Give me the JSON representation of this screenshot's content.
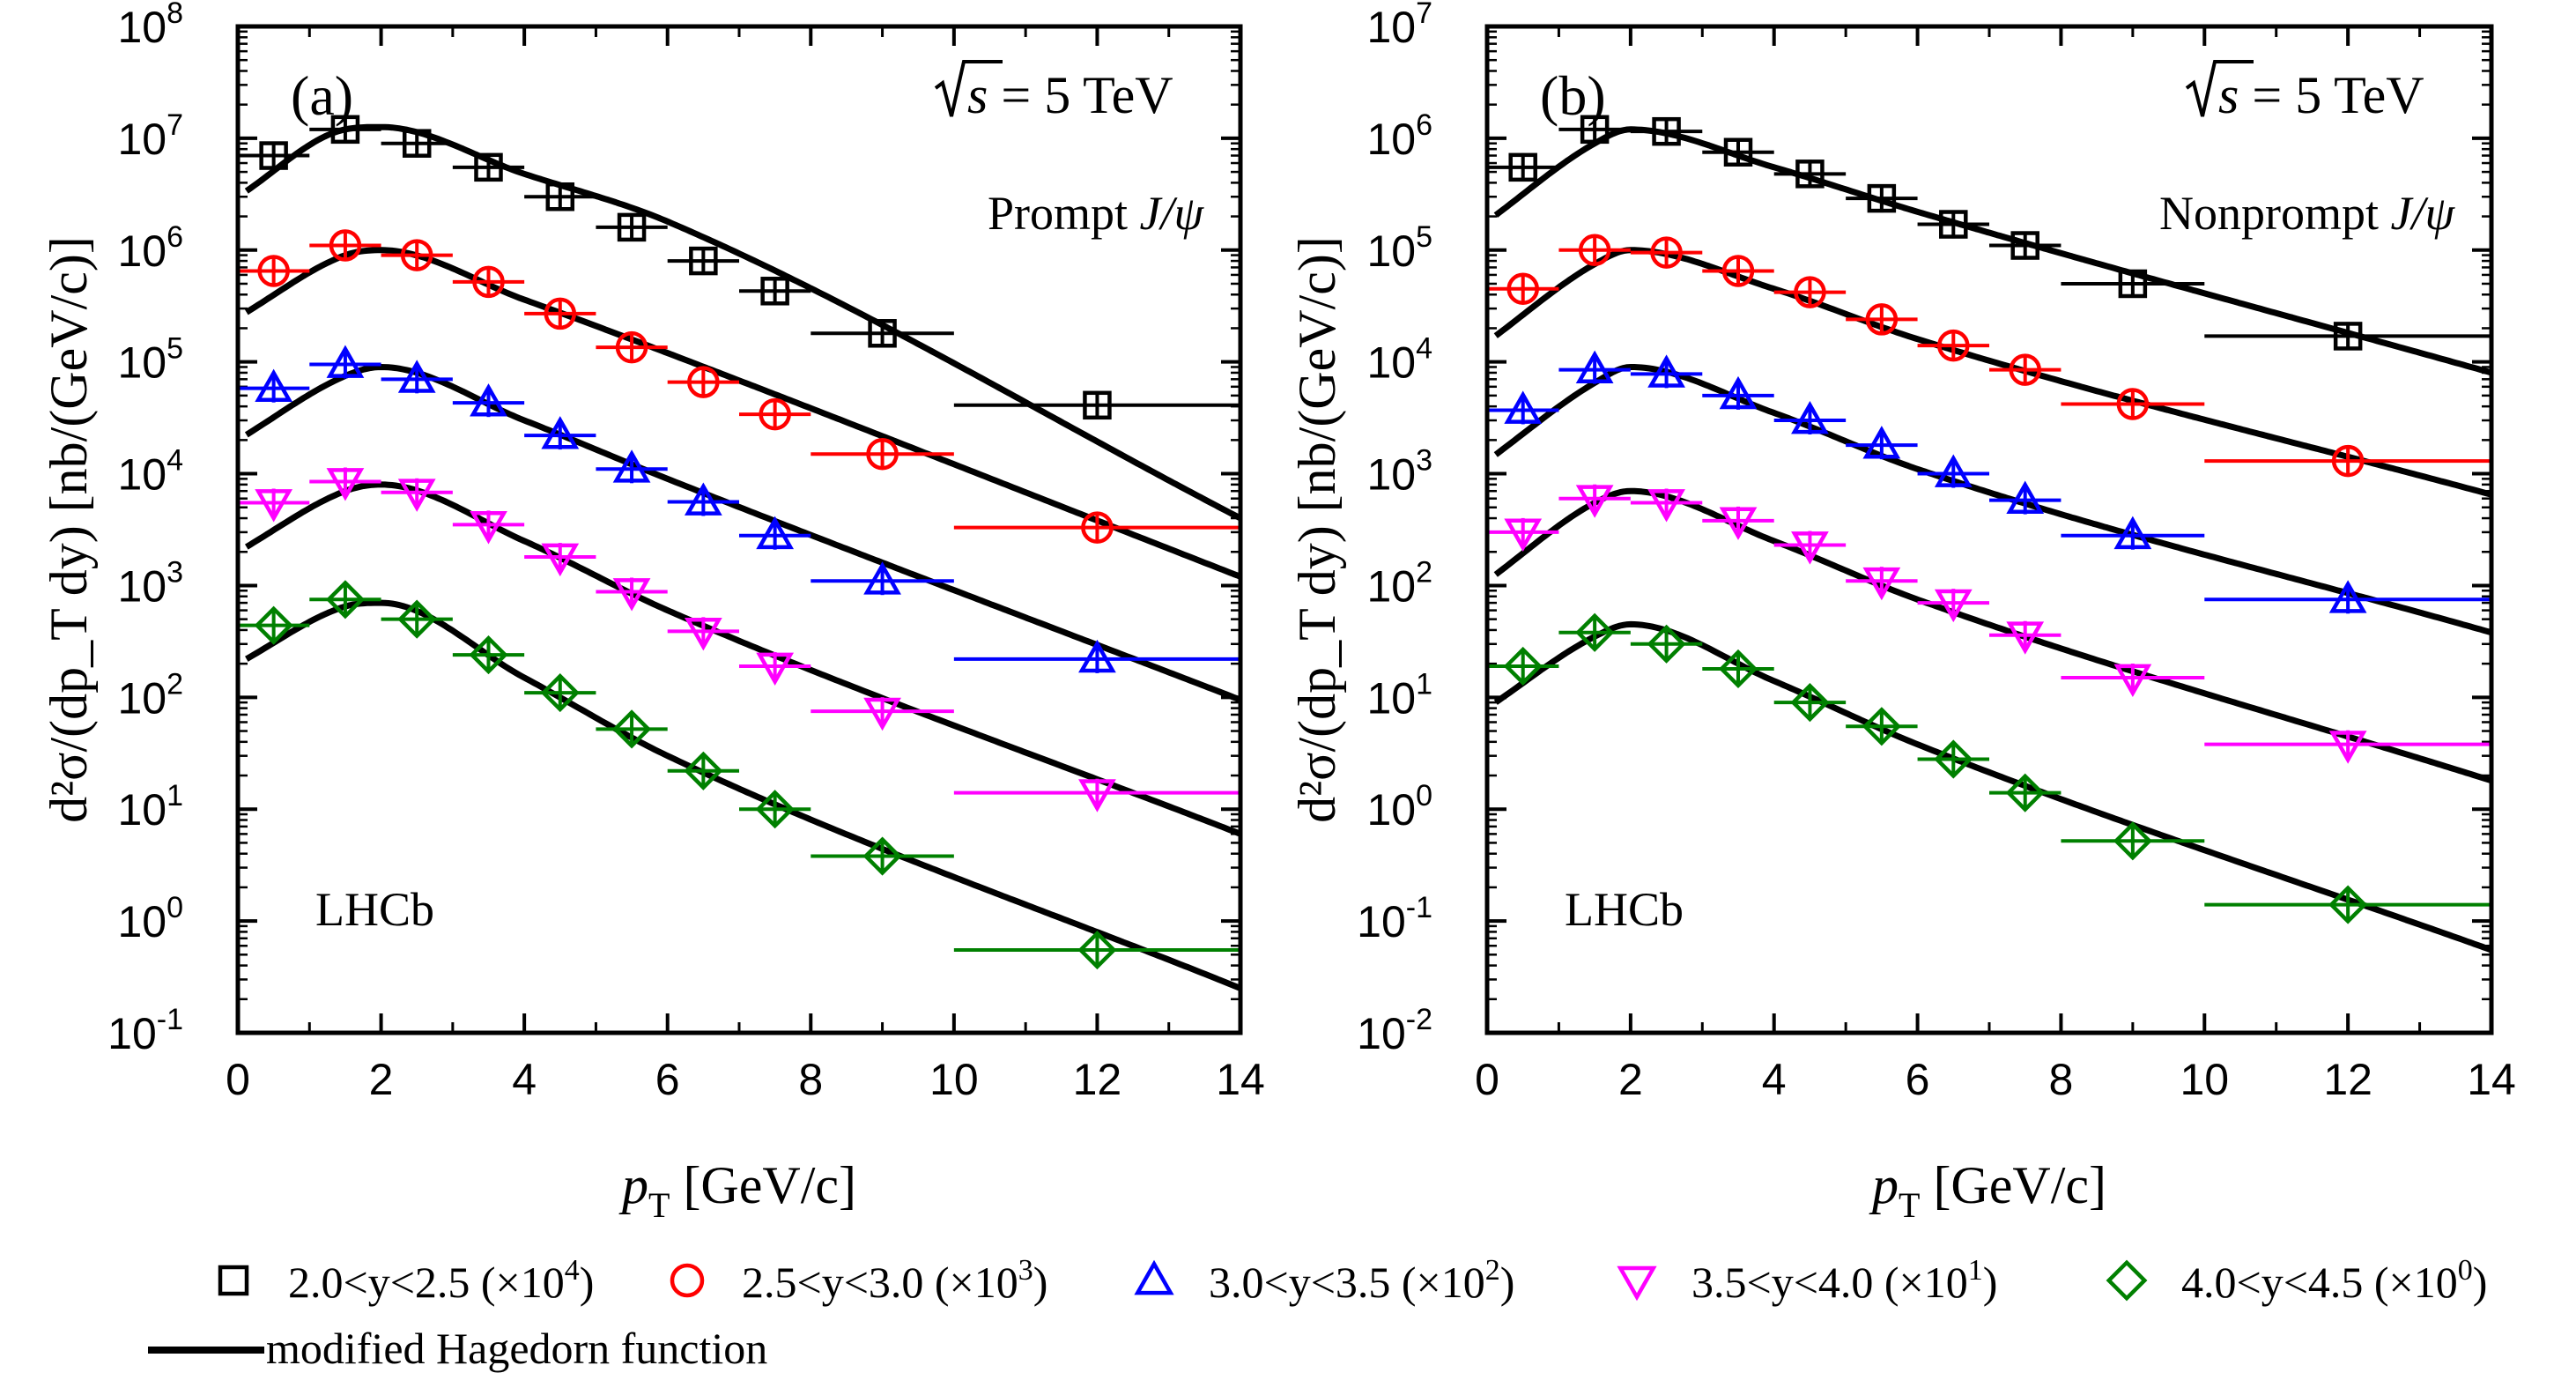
{
  "chart_data": [
    {
      "panel": "a",
      "type": "scatter",
      "label": "(a)",
      "energy": {
        "sqrt": "s",
        "rest": " = 5 TeV"
      },
      "species": {
        "text": "Prompt ",
        "italic": "J/ψ"
      },
      "experiment": "LHCb",
      "xlabel": {
        "main": "p",
        "sub": "T",
        "rest": " [GeV/c]"
      },
      "ylabel": "d²σ/(dp_T dy) [nb/(GeV/c)]",
      "xlim": [
        0,
        14
      ],
      "ylim_log10": [
        -1,
        8
      ],
      "xticks": [
        "0",
        "2",
        "4",
        "6",
        "8",
        "10",
        "12",
        "14"
      ],
      "yticks": [
        {
          "exp": -1,
          "label": "10",
          "sup": "-1"
        },
        {
          "exp": 0,
          "label": "10",
          "sup": "0"
        },
        {
          "exp": 1,
          "label": "10",
          "sup": "1"
        },
        {
          "exp": 2,
          "label": "10",
          "sup": "2"
        },
        {
          "exp": 3,
          "label": "10",
          "sup": "3"
        },
        {
          "exp": 4,
          "label": "10",
          "sup": "4"
        },
        {
          "exp": 5,
          "label": "10",
          "sup": "5"
        },
        {
          "exp": 6,
          "label": "10",
          "sup": "6"
        },
        {
          "exp": 7,
          "label": "10",
          "sup": "7"
        },
        {
          "exp": 8,
          "label": "10",
          "sup": "8"
        }
      ],
      "series": [
        {
          "name": "2.0<y<2.5 (×10⁴)",
          "marker": "square",
          "color": "#000000",
          "x": [
            0.5,
            1.5,
            2.5,
            3.5,
            4.5,
            5.5,
            6.5,
            7.5,
            9,
            12
          ],
          "y": [
            7000000.0,
            12000000.0,
            9000000.0,
            5500000.0,
            3000000.0,
            1600000.0,
            800000.0,
            430000.0,
            180000.0,
            41000.0
          ],
          "fit": [
            3000000.0,
            12000000.0,
            12600000.0,
            4800000.0,
            1800000.0,
            4000.0
          ]
        },
        {
          "name": "2.5<y<3.0 (×10³)",
          "marker": "circle",
          "color": "#ff0000",
          "x": [
            0.5,
            1.5,
            2.5,
            3.5,
            4.5,
            5.5,
            6.5,
            7.5,
            9,
            12
          ],
          "y": [
            650000.0,
            1100000.0,
            900000.0,
            520000.0,
            270000.0,
            135000.0,
            66000.0,
            34000.0,
            15000.0,
            3300.0
          ],
          "fit": [
            250000.0,
            900000.0,
            1000000.0,
            360000.0,
            120000.0,
            1200.0
          ]
        },
        {
          "name": "3.0<y<3.5 (×10²)",
          "marker": "triangle-up",
          "color": "#0000ff",
          "x": [
            0.5,
            1.5,
            2.5,
            3.5,
            4.5,
            5.5,
            6.5,
            7.5,
            9,
            12
          ],
          "y": [
            58000.0,
            95000.0,
            70000.0,
            43000.0,
            22000.0,
            11000.0,
            5600.0,
            2800.0,
            1100.0,
            220.0
          ],
          "fit": [
            20000.0,
            75000.0,
            90000.0,
            30000.0,
            9000.0,
            95
          ]
        },
        {
          "name": "3.5<y<4.0 (×10¹)",
          "marker": "triangle-down",
          "color": "#ff00ff",
          "x": [
            0.5,
            1.5,
            2.5,
            3.5,
            4.5,
            5.5,
            6.5,
            7.5,
            9,
            12
          ],
          "y": [
            5500.0,
            8500.0,
            6800.0,
            3500.0,
            1800.0,
            880.0,
            390.0,
            190.0,
            75,
            14
          ],
          "fit": [
            2000.0,
            7000.0,
            8000.0,
            2500.0,
            600.0,
            6
          ]
        },
        {
          "name": "4.0<y<4.5 (×10⁰)",
          "marker": "diamond",
          "color": "#008000",
          "x": [
            0.5,
            1.5,
            2.5,
            3.5,
            4.5,
            5.5,
            6.5,
            7.5,
            9,
            12
          ],
          "y": [
            440,
            750,
            500,
            240,
            110,
            52,
            22,
            10,
            3.8,
            0.55
          ],
          "fit": [
            200,
            650,
            700,
            150,
            30,
            0.25
          ]
        }
      ]
    },
    {
      "panel": "b",
      "type": "scatter",
      "label": "(b)",
      "energy": {
        "sqrt": "s",
        "rest": " = 5 TeV"
      },
      "species": {
        "text": "Nonprompt ",
        "italic": "J/ψ"
      },
      "experiment": "LHCb",
      "xlabel": {
        "main": "p",
        "sub": "T",
        "rest": " [GeV/c]"
      },
      "ylabel": "d²σ/(dp_T dy) [nb/(GeV/c)]",
      "xlim": [
        0,
        14
      ],
      "ylim_log10": [
        -2,
        7
      ],
      "xticks": [
        "0",
        "2",
        "4",
        "6",
        "8",
        "10",
        "12",
        "14"
      ],
      "yticks": [
        {
          "exp": -2,
          "label": "10",
          "sup": "-2"
        },
        {
          "exp": -1,
          "label": "10",
          "sup": "-1"
        },
        {
          "exp": 0,
          "label": "10",
          "sup": "0"
        },
        {
          "exp": 1,
          "label": "10",
          "sup": "1"
        },
        {
          "exp": 2,
          "label": "10",
          "sup": "2"
        },
        {
          "exp": 3,
          "label": "10",
          "sup": "3"
        },
        {
          "exp": 4,
          "label": "10",
          "sup": "4"
        },
        {
          "exp": 5,
          "label": "10",
          "sup": "5"
        },
        {
          "exp": 6,
          "label": "10",
          "sup": "6"
        },
        {
          "exp": 7,
          "label": "10",
          "sup": "7"
        }
      ],
      "series": [
        {
          "name": "2.0<y<2.5 (×10⁴)",
          "marker": "square",
          "color": "#000000",
          "x": [
            0.5,
            1.5,
            2.5,
            3.5,
            4.5,
            5.5,
            6.5,
            7.5,
            9,
            12
          ],
          "y": [
            550000.0,
            1200000.0,
            1150000.0,
            750000.0,
            480000.0,
            290000.0,
            170000.0,
            110000.0,
            50000.0,
            17000.0
          ],
          "fit": [
            180000.0,
            900000.0,
            1200000.0,
            550000.0,
            220000.0,
            8000.0
          ]
        },
        {
          "name": "2.5<y<3.0 (×10³)",
          "marker": "circle",
          "color": "#ff0000",
          "x": [
            0.5,
            1.5,
            2.5,
            3.5,
            4.5,
            5.5,
            6.5,
            7.5,
            9,
            12
          ],
          "y": [
            45000.0,
            100000.0,
            95000.0,
            65000.0,
            42000.0,
            24000.0,
            14000.0,
            8500.0,
            4200.0,
            1300.0
          ],
          "fit": [
            15000.0,
            75000.0,
            100000.0,
            45000.0,
            16000.0,
            650.0
          ]
        },
        {
          "name": "3.0<y<3.5 (×10²)",
          "marker": "triangle-up",
          "color": "#0000ff",
          "x": [
            0.5,
            1.5,
            2.5,
            3.5,
            4.5,
            5.5,
            6.5,
            7.5,
            9,
            12
          ],
          "y": [
            3700.0,
            8500.0,
            7800.0,
            5000.0,
            3000.0,
            1800.0,
            1000.0,
            580.0,
            280.0,
            75
          ],
          "fit": [
            1300.0,
            6500.0,
            9000.0,
            3500.0,
            1100.0,
            38
          ]
        },
        {
          "name": "3.5<y<4.0 (×10¹)",
          "marker": "triangle-down",
          "color": "#ff00ff",
          "x": [
            0.5,
            1.5,
            2.5,
            3.5,
            4.5,
            5.5,
            6.5,
            7.5,
            9,
            12
          ],
          "y": [
            300,
            600,
            550,
            380,
            230,
            110,
            70,
            36,
            15,
            3.8
          ],
          "fit": [
            110,
            550,
            700,
            250,
            75,
            1.8
          ]
        },
        {
          "name": "4.0<y<4.5 (×10⁰)",
          "marker": "diamond",
          "color": "#008000",
          "x": [
            0.5,
            1.5,
            2.5,
            3.5,
            4.5,
            5.5,
            6.5,
            7.5,
            9,
            12
          ],
          "y": [
            19,
            38,
            30,
            18,
            9,
            5.5,
            2.8,
            1.4,
            0.52,
            0.14
          ],
          "fit": [
            8,
            35,
            45,
            14,
            3.8,
            0.055
          ]
        }
      ]
    }
  ],
  "legend": {
    "items": [
      {
        "marker": "square",
        "color": "#000000",
        "text": "2.0<y<2.5 (×10",
        "sup": "4",
        "close": ")"
      },
      {
        "marker": "circle",
        "color": "#ff0000",
        "text": "2.5<y<3.0 (×10",
        "sup": "3",
        "close": ")"
      },
      {
        "marker": "triangle-up",
        "color": "#0000ff",
        "text": "3.0<y<3.5 (×10",
        "sup": "2",
        "close": ")"
      },
      {
        "marker": "triangle-down",
        "color": "#ff00ff",
        "text": "3.5<y<4.0 (×10",
        "sup": "1",
        "close": ")"
      },
      {
        "marker": "diamond",
        "color": "#008000",
        "text": "4.0<y<4.5 (×10",
        "sup": "0",
        "close": ")"
      }
    ],
    "line_label": "modified Hagedorn function"
  }
}
